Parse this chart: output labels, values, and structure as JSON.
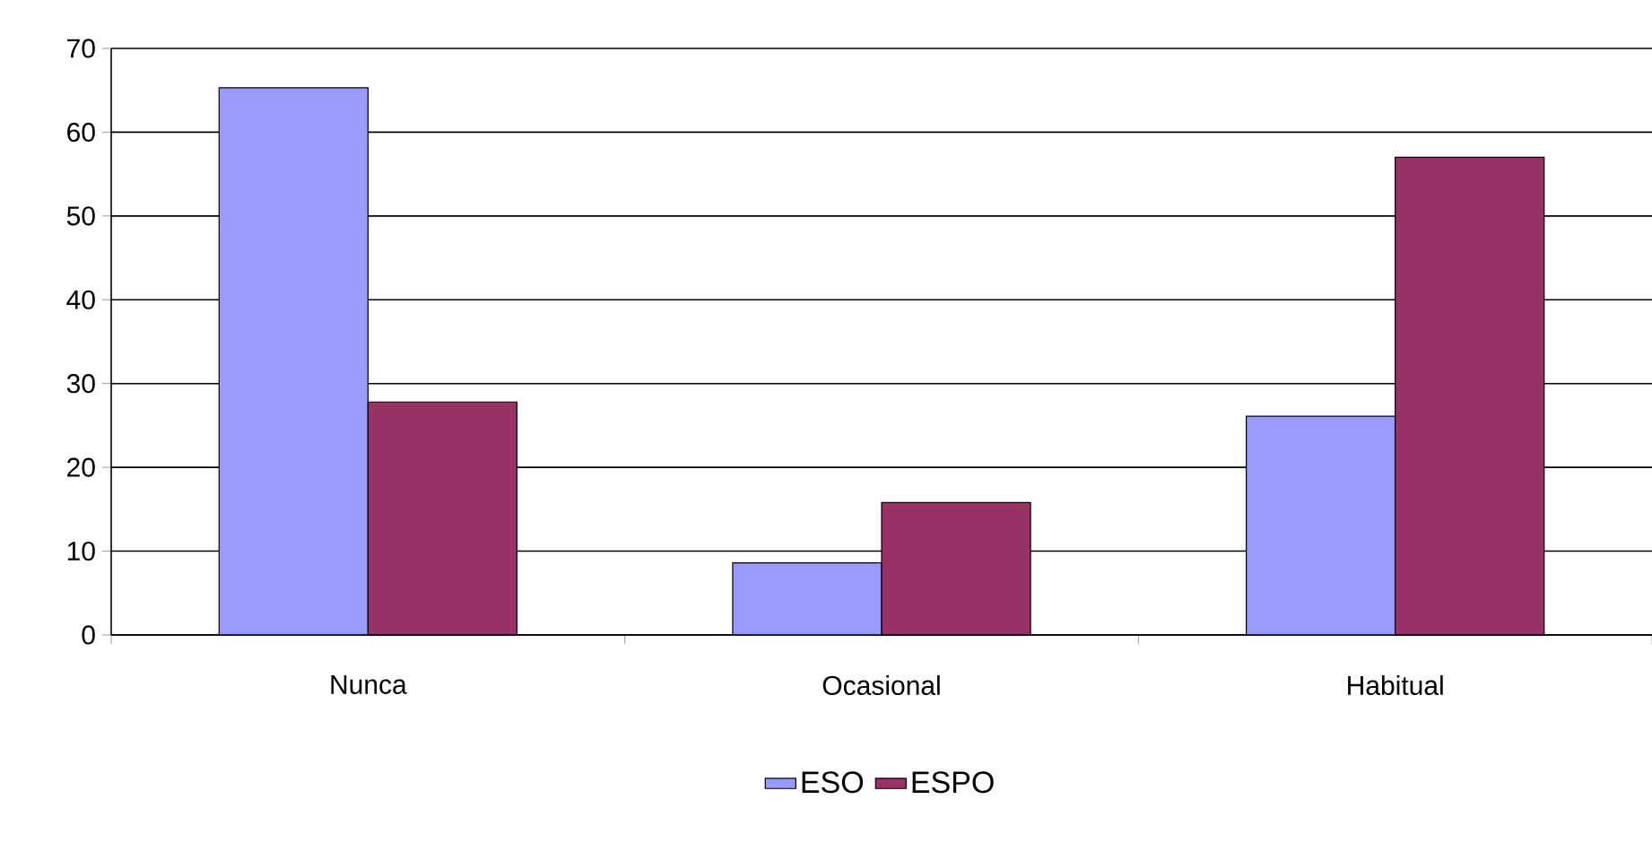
{
  "chart_data": {
    "type": "bar",
    "categories": [
      "Nunca",
      "Ocasional",
      "Habitual"
    ],
    "series": [
      {
        "name": "ESO",
        "color": "#9999ff",
        "values": [
          65.3,
          8.6,
          26.1
        ]
      },
      {
        "name": "ESPO",
        "color": "#993366",
        "values": [
          27.8,
          15.8,
          57.0
        ]
      }
    ],
    "ylim": [
      0,
      70
    ],
    "yticks": [
      0,
      10,
      20,
      30,
      40,
      50,
      60,
      70
    ],
    "grid": "y",
    "legend": "bottom"
  }
}
